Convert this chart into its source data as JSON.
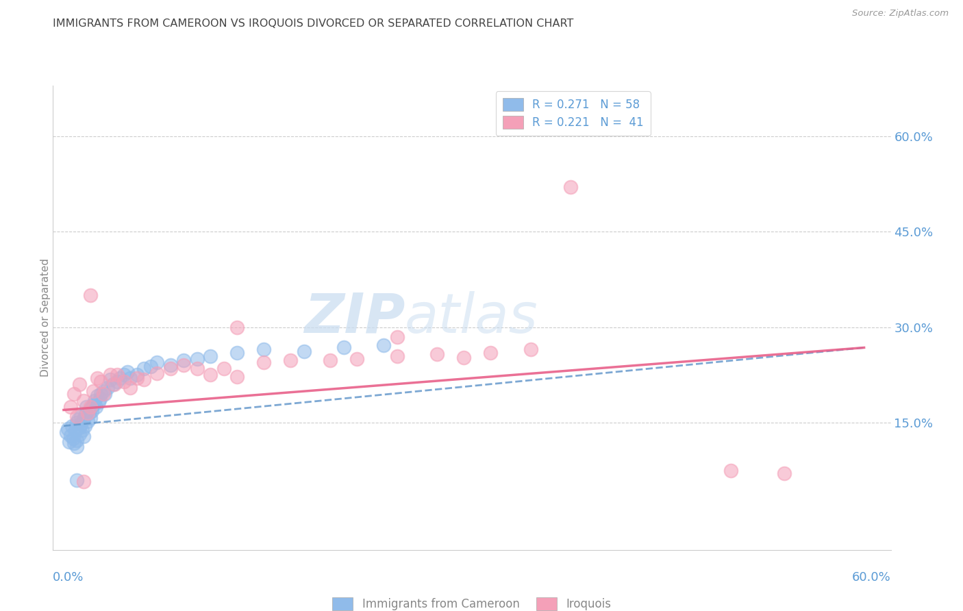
{
  "title": "IMMIGRANTS FROM CAMEROON VS IROQUOIS DIVORCED OR SEPARATED CORRELATION CHART",
  "source_text": "Source: ZipAtlas.com",
  "ylabel": "Divorced or Separated",
  "ytick_labels": [
    "15.0%",
    "30.0%",
    "45.0%",
    "60.0%"
  ],
  "ytick_values": [
    0.15,
    0.3,
    0.45,
    0.6
  ],
  "xlim": [
    0.0,
    0.6
  ],
  "ylim": [
    -0.05,
    0.68
  ],
  "legend_line1": "R = 0.271   N = 58",
  "legend_line2": "R = 0.221   N =  41",
  "color_blue": "#90BBEA",
  "color_pink": "#F4A0B8",
  "color_blue_trend": "#6699CC",
  "color_pink_trend": "#E8608A",
  "title_color": "#444444",
  "axis_label_color": "#5B9BD5",
  "watermark_color": "#D8E8F5",
  "bottom_label_blue": "Immigrants from Cameroon",
  "bottom_label_pink": "Iroquois",
  "blue_x": [
    0.002,
    0.003,
    0.004,
    0.005,
    0.006,
    0.007,
    0.008,
    0.009,
    0.01,
    0.01,
    0.01,
    0.011,
    0.012,
    0.012,
    0.013,
    0.013,
    0.014,
    0.015,
    0.015,
    0.016,
    0.016,
    0.017,
    0.018,
    0.019,
    0.02,
    0.02,
    0.021,
    0.022,
    0.023,
    0.024,
    0.025,
    0.026,
    0.027,
    0.028,
    0.03,
    0.031,
    0.033,
    0.035,
    0.037,
    0.04,
    0.042,
    0.045,
    0.048,
    0.05,
    0.055,
    0.06,
    0.065,
    0.07,
    0.08,
    0.09,
    0.1,
    0.11,
    0.13,
    0.15,
    0.18,
    0.21,
    0.24,
    0.01
  ],
  "blue_y": [
    0.135,
    0.14,
    0.12,
    0.13,
    0.145,
    0.125,
    0.118,
    0.138,
    0.15,
    0.112,
    0.122,
    0.155,
    0.142,
    0.132,
    0.148,
    0.16,
    0.138,
    0.128,
    0.155,
    0.145,
    0.162,
    0.175,
    0.152,
    0.165,
    0.158,
    0.172,
    0.168,
    0.178,
    0.185,
    0.175,
    0.192,
    0.182,
    0.188,
    0.195,
    0.2,
    0.195,
    0.205,
    0.218,
    0.21,
    0.215,
    0.22,
    0.225,
    0.23,
    0.22,
    0.225,
    0.235,
    0.238,
    0.245,
    0.24,
    0.248,
    0.25,
    0.255,
    0.26,
    0.265,
    0.262,
    0.268,
    0.272,
    0.06
  ],
  "pink_x": [
    0.005,
    0.008,
    0.01,
    0.012,
    0.015,
    0.018,
    0.02,
    0.022,
    0.025,
    0.028,
    0.03,
    0.035,
    0.038,
    0.04,
    0.045,
    0.05,
    0.055,
    0.06,
    0.07,
    0.08,
    0.09,
    0.1,
    0.11,
    0.12,
    0.13,
    0.15,
    0.17,
    0.2,
    0.22,
    0.25,
    0.28,
    0.3,
    0.32,
    0.35,
    0.38,
    0.5,
    0.54,
    0.13,
    0.25,
    0.02,
    0.015
  ],
  "pink_y": [
    0.175,
    0.195,
    0.16,
    0.21,
    0.185,
    0.165,
    0.35,
    0.2,
    0.22,
    0.215,
    0.195,
    0.225,
    0.21,
    0.225,
    0.215,
    0.205,
    0.22,
    0.218,
    0.228,
    0.235,
    0.24,
    0.235,
    0.225,
    0.235,
    0.222,
    0.245,
    0.248,
    0.248,
    0.25,
    0.255,
    0.258,
    0.252,
    0.26,
    0.265,
    0.52,
    0.075,
    0.07,
    0.3,
    0.285,
    0.175,
    0.058
  ],
  "blue_trend_x": [
    0.0,
    0.6
  ],
  "blue_trend_y": [
    0.145,
    0.268
  ],
  "pink_trend_x": [
    0.0,
    0.6
  ],
  "pink_trend_y": [
    0.17,
    0.268
  ]
}
